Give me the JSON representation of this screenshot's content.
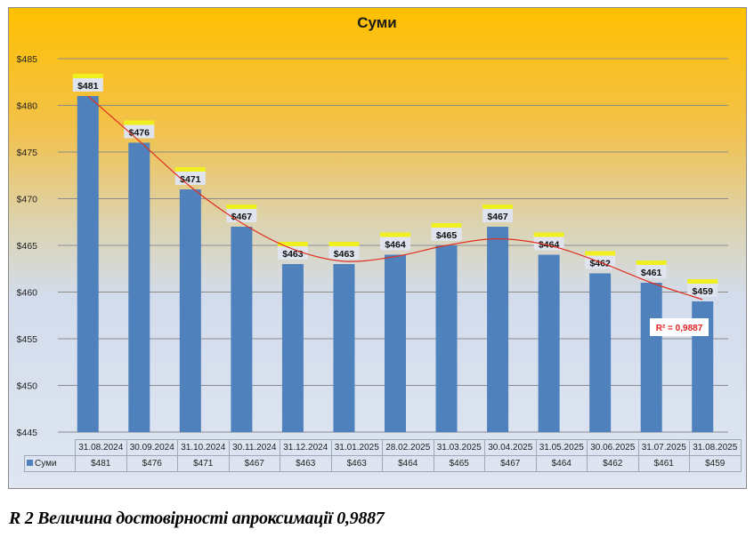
{
  "chart_data": {
    "type": "bar",
    "title": "Суми",
    "xlabel": "",
    "ylabel": "",
    "ylim": [
      445,
      485
    ],
    "yticks": [
      "$445",
      "$450",
      "$455",
      "$460",
      "$465",
      "$470",
      "$475",
      "$480",
      "$485"
    ],
    "categories": [
      "31.08.2024",
      "30.09.2024",
      "31.10.2024",
      "30.11.2024",
      "31.12.2024",
      "31.01.2025",
      "28.02.2025",
      "31.03.2025",
      "30.04.2025",
      "31.05.2025",
      "30.06.2025",
      "31.07.2025",
      "31.08.2025"
    ],
    "series": [
      {
        "name": "Суми",
        "values": [
          481,
          476,
          471,
          467,
          463,
          463,
          464,
          465,
          467,
          464,
          462,
          461,
          459
        ],
        "labels": [
          "$481",
          "$476",
          "$471",
          "$467",
          "$463",
          "$463",
          "$464",
          "$465",
          "$467",
          "$464",
          "$462",
          "$461",
          "$459"
        ],
        "color": "#4f81bd"
      }
    ],
    "trendline": {
      "type": "polynomial",
      "color": "#e03020",
      "values": [
        481,
        476.2,
        471.3,
        467.4,
        464.6,
        463.3,
        463.8,
        465,
        465.7,
        465,
        463.2,
        461,
        459.2
      ],
      "r2_label": "R² = 0,9887"
    },
    "grid": true,
    "legend": "data-table"
  },
  "caption": "R 2 Величина достовірності апроксимації 0,9887"
}
